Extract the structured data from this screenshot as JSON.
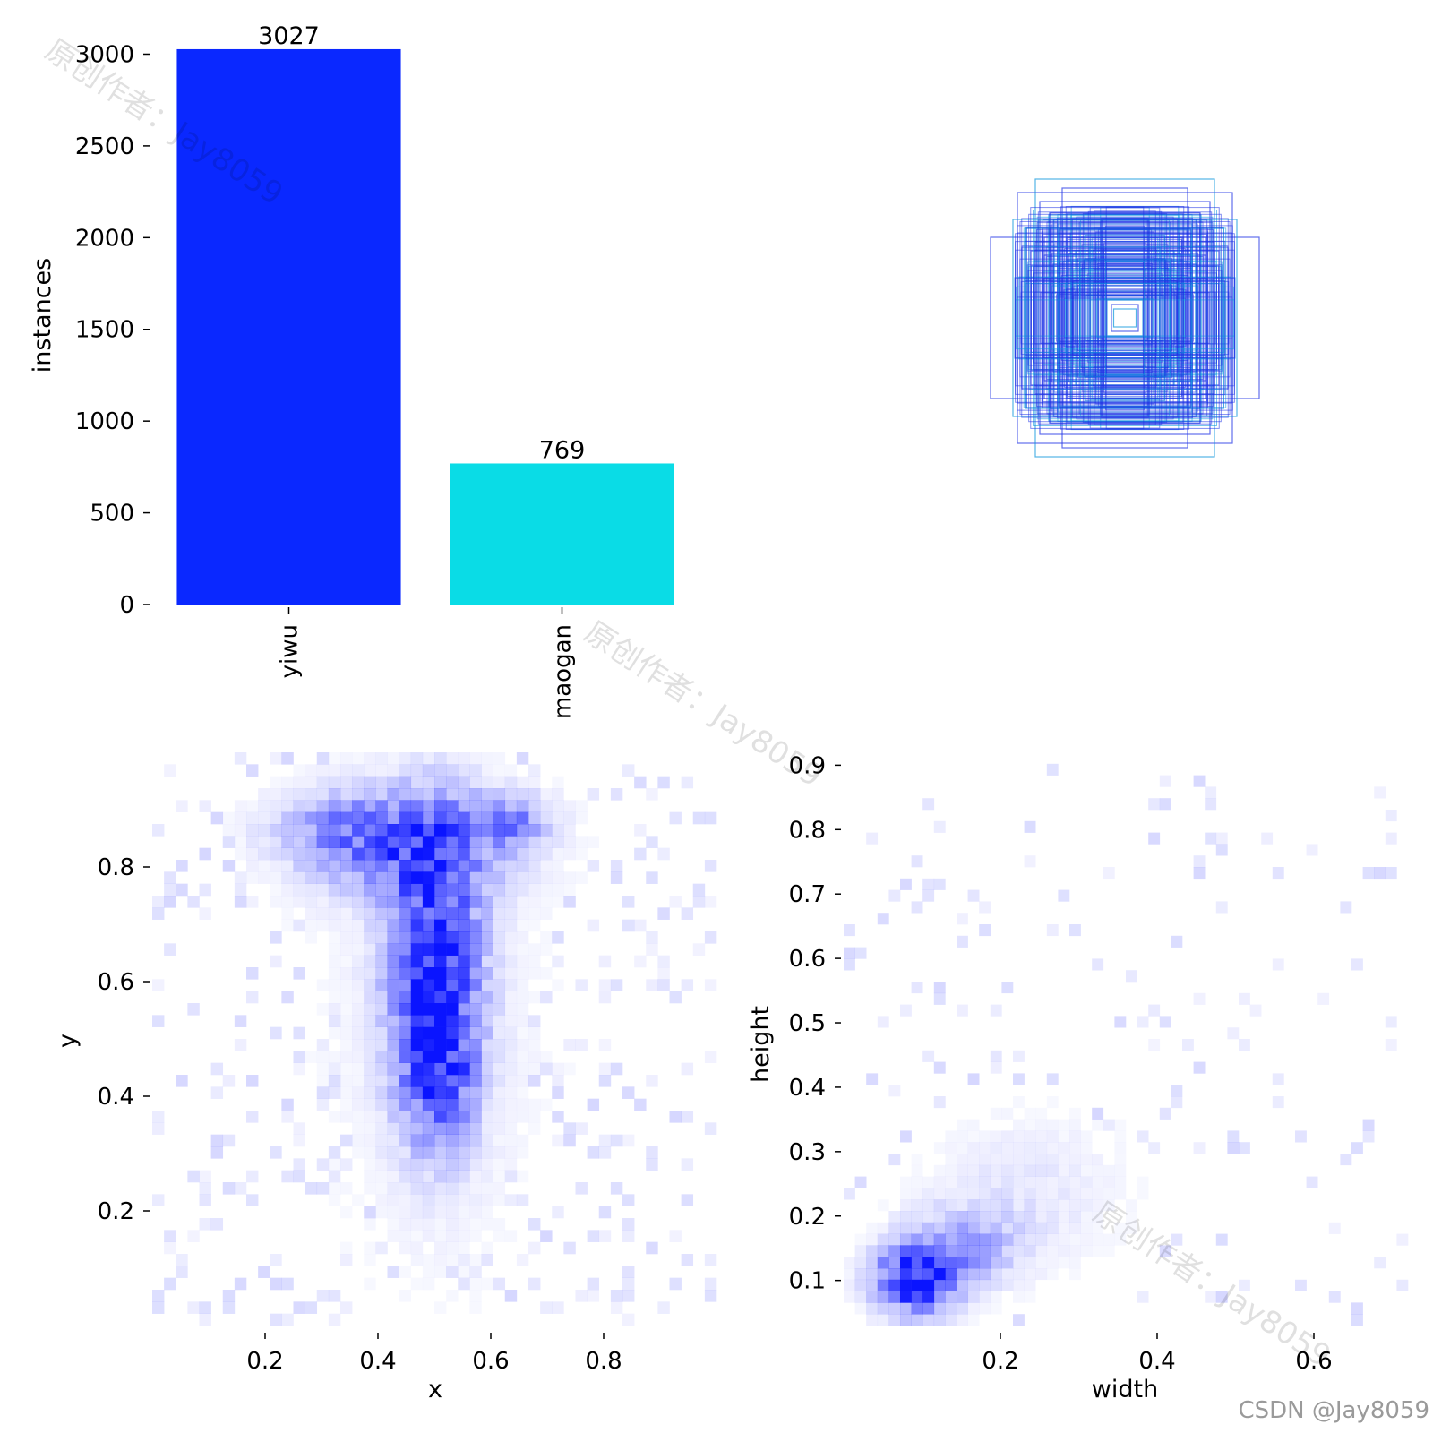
{
  "chart_data": [
    {
      "type": "bar",
      "ylabel": "instances",
      "categories": [
        "yiwu",
        "maogan"
      ],
      "values": [
        3027,
        769
      ],
      "data_labels": [
        "3027",
        "769"
      ],
      "colors": [
        "#0a28ff",
        "#0adce6"
      ],
      "ylim": [
        0,
        3100
      ],
      "yticks": [
        0,
        500,
        1000,
        1500,
        2000,
        2500,
        3000
      ],
      "ytick_labels": [
        "0",
        "500",
        "1000",
        "1500",
        "2000",
        "2500",
        "3000"
      ],
      "grid": false
    },
    {
      "type": "box-overlay",
      "description_color": "#1e32e6",
      "stroke_colors": [
        "#1e32e6",
        "#0a96dc"
      ],
      "boxes_wh": [
        [
          0.48,
          0.56
        ],
        [
          0.4,
          0.62
        ],
        [
          0.6,
          0.36
        ],
        [
          0.5,
          0.44
        ],
        [
          0.38,
          0.52
        ],
        [
          0.3,
          0.3
        ],
        [
          0.26,
          0.36
        ],
        [
          0.44,
          0.4
        ],
        [
          0.28,
          0.58
        ],
        [
          0.34,
          0.4
        ],
        [
          0.36,
          0.28
        ],
        [
          0.24,
          0.46
        ],
        [
          0.46,
          0.32
        ],
        [
          0.22,
          0.3
        ],
        [
          0.32,
          0.24
        ],
        [
          0.2,
          0.22
        ],
        [
          0.18,
          0.26
        ],
        [
          0.24,
          0.18
        ],
        [
          0.14,
          0.16
        ],
        [
          0.12,
          0.12
        ],
        [
          0.1,
          0.1
        ],
        [
          0.08,
          0.08
        ],
        [
          0.06,
          0.06
        ],
        [
          0.05,
          0.04
        ],
        [
          0.42,
          0.3
        ],
        [
          0.3,
          0.42
        ],
        [
          0.36,
          0.36
        ],
        [
          0.26,
          0.26
        ],
        [
          0.4,
          0.34
        ],
        [
          0.34,
          0.46
        ]
      ]
    },
    {
      "type": "heatmap",
      "xlabel": "x",
      "ylabel": "y",
      "xlim": [
        0.0,
        1.0
      ],
      "ylim": [
        0.0,
        1.0
      ],
      "xticks": [
        0.2,
        0.4,
        0.6,
        0.8
      ],
      "xtick_labels": [
        "0.2",
        "0.4",
        "0.6",
        "0.8"
      ],
      "yticks": [
        0.2,
        0.4,
        0.6,
        0.8
      ],
      "ytick_labels": [
        "0.2",
        "0.4",
        "0.6",
        "0.8"
      ],
      "color": "#0a14ff",
      "hotspots": [
        {
          "x": 0.5,
          "y": 0.62,
          "sx": 0.055,
          "sy": 0.17,
          "w": 0.95
        },
        {
          "x": 0.51,
          "y": 0.44,
          "sx": 0.04,
          "sy": 0.08,
          "w": 0.55
        },
        {
          "x": 0.45,
          "y": 0.84,
          "sx": 0.12,
          "sy": 0.06,
          "w": 0.55
        },
        {
          "x": 0.33,
          "y": 0.87,
          "sx": 0.08,
          "sy": 0.04,
          "w": 0.3
        },
        {
          "x": 0.63,
          "y": 0.88,
          "sx": 0.05,
          "sy": 0.03,
          "w": 0.45
        },
        {
          "x": 0.5,
          "y": 0.5,
          "sx": 0.2,
          "sy": 0.4,
          "w": 0.05
        }
      ]
    },
    {
      "type": "heatmap",
      "xlabel": "width",
      "ylabel": "height",
      "xlim": [
        0.0,
        0.72
      ],
      "ylim": [
        0.03,
        0.92
      ],
      "xticks": [
        0.2,
        0.4,
        0.6
      ],
      "xtick_labels": [
        "0.2",
        "0.4",
        "0.6"
      ],
      "yticks": [
        0.1,
        0.2,
        0.3,
        0.4,
        0.5,
        0.6,
        0.7,
        0.8,
        0.9
      ],
      "ytick_labels": [
        "0.1",
        "0.2",
        "0.3",
        "0.4",
        "0.5",
        "0.6",
        "0.7",
        "0.8",
        "0.9"
      ],
      "color": "#0a14ff",
      "hotspots": [
        {
          "x": 0.09,
          "y": 0.1,
          "sx": 0.035,
          "sy": 0.035,
          "w": 1.0
        },
        {
          "x": 0.15,
          "y": 0.15,
          "sx": 0.05,
          "sy": 0.04,
          "w": 0.4
        },
        {
          "x": 0.23,
          "y": 0.24,
          "sx": 0.08,
          "sy": 0.07,
          "w": 0.1
        },
        {
          "x": 0.3,
          "y": 0.35,
          "sx": 0.2,
          "sy": 0.25,
          "w": 0.015
        }
      ]
    }
  ],
  "watermark": "原创作者：Jay8059",
  "credit": "CSDN @Jay8059"
}
